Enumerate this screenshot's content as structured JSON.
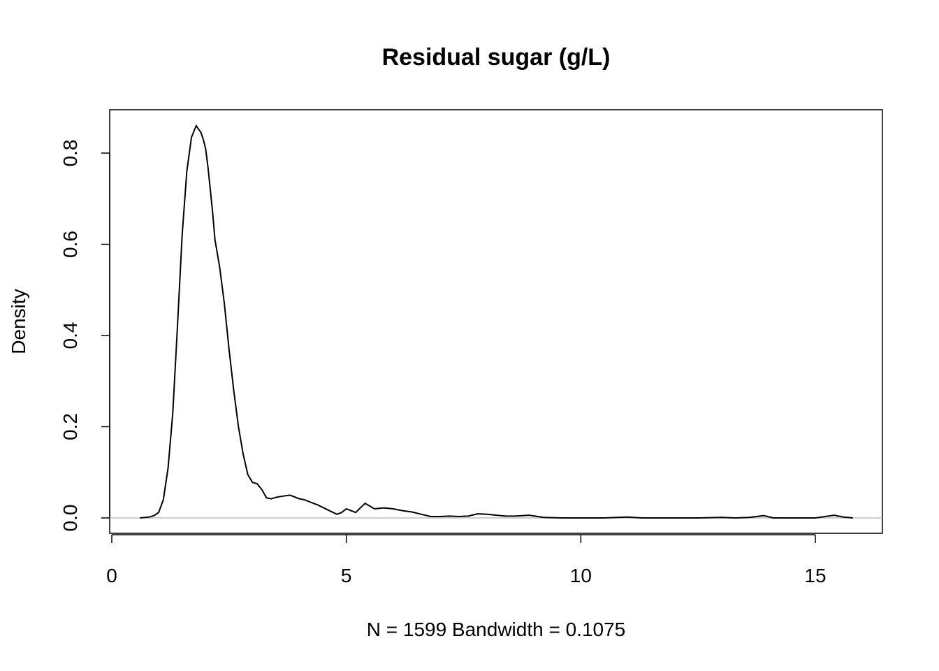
{
  "chart_data": {
    "type": "line",
    "title": "Residual sugar (g/L)",
    "xlabel": "N = 1599   Bandwidth = 0.1075",
    "ylabel": "Density",
    "xlim": [
      0,
      16.5
    ],
    "ylim": [
      -0.035,
      0.9
    ],
    "x_ticks": [
      0,
      5,
      10,
      15
    ],
    "x_tick_labels": [
      "0",
      "5",
      "10",
      "15"
    ],
    "y_ticks": [
      0.0,
      0.2,
      0.4,
      0.6,
      0.8
    ],
    "y_tick_labels": [
      "0.0",
      "0.2",
      "0.4",
      "0.6",
      "0.8"
    ],
    "reference_line_y": 0,
    "grid": false,
    "colors": {
      "curve": "#000000",
      "reference_line": "#bebebe",
      "frame": "#000000"
    },
    "series": [
      {
        "x": [
          0.6,
          0.8,
          0.9,
          1.0,
          1.1,
          1.2,
          1.3,
          1.4,
          1.5,
          1.6,
          1.7,
          1.8,
          1.9,
          1.95,
          2.0,
          2.05,
          2.1,
          2.15,
          2.2,
          2.3,
          2.4,
          2.5,
          2.6,
          2.7,
          2.8,
          2.9,
          3.0,
          3.1,
          3.2,
          3.3,
          3.4,
          3.5,
          3.6,
          3.8,
          4.0,
          4.1,
          4.2,
          4.4,
          4.6,
          4.8,
          4.9,
          5.0,
          5.1,
          5.2,
          5.3,
          5.4,
          5.5,
          5.6,
          5.8,
          6.0,
          6.2,
          6.4,
          6.6,
          6.8,
          7.0,
          7.2,
          7.4,
          7.6,
          7.8,
          8.0,
          8.2,
          8.4,
          8.6,
          8.9,
          9.2,
          9.6,
          10.0,
          10.5,
          11.0,
          11.3,
          11.6,
          12.0,
          12.5,
          13.0,
          13.3,
          13.6,
          13.9,
          14.1,
          14.5,
          15.0,
          15.4,
          15.6,
          15.8
        ],
        "y": [
          0.0,
          0.002,
          0.005,
          0.012,
          0.04,
          0.11,
          0.23,
          0.42,
          0.62,
          0.76,
          0.835,
          0.86,
          0.845,
          0.83,
          0.81,
          0.77,
          0.72,
          0.67,
          0.61,
          0.55,
          0.47,
          0.37,
          0.28,
          0.2,
          0.14,
          0.095,
          0.078,
          0.075,
          0.062,
          0.044,
          0.042,
          0.045,
          0.047,
          0.05,
          0.042,
          0.04,
          0.036,
          0.028,
          0.018,
          0.008,
          0.012,
          0.02,
          0.016,
          0.012,
          0.022,
          0.032,
          0.026,
          0.02,
          0.022,
          0.02,
          0.016,
          0.013,
          0.008,
          0.003,
          0.003,
          0.004,
          0.003,
          0.004,
          0.009,
          0.008,
          0.006,
          0.004,
          0.004,
          0.006,
          0.001,
          0.0,
          0.0,
          0.0,
          0.002,
          0.0,
          0.0,
          0.0,
          0.0,
          0.001,
          0.0,
          0.001,
          0.005,
          0.0,
          0.0,
          0.0,
          0.006,
          0.002,
          0.0
        ]
      }
    ]
  }
}
